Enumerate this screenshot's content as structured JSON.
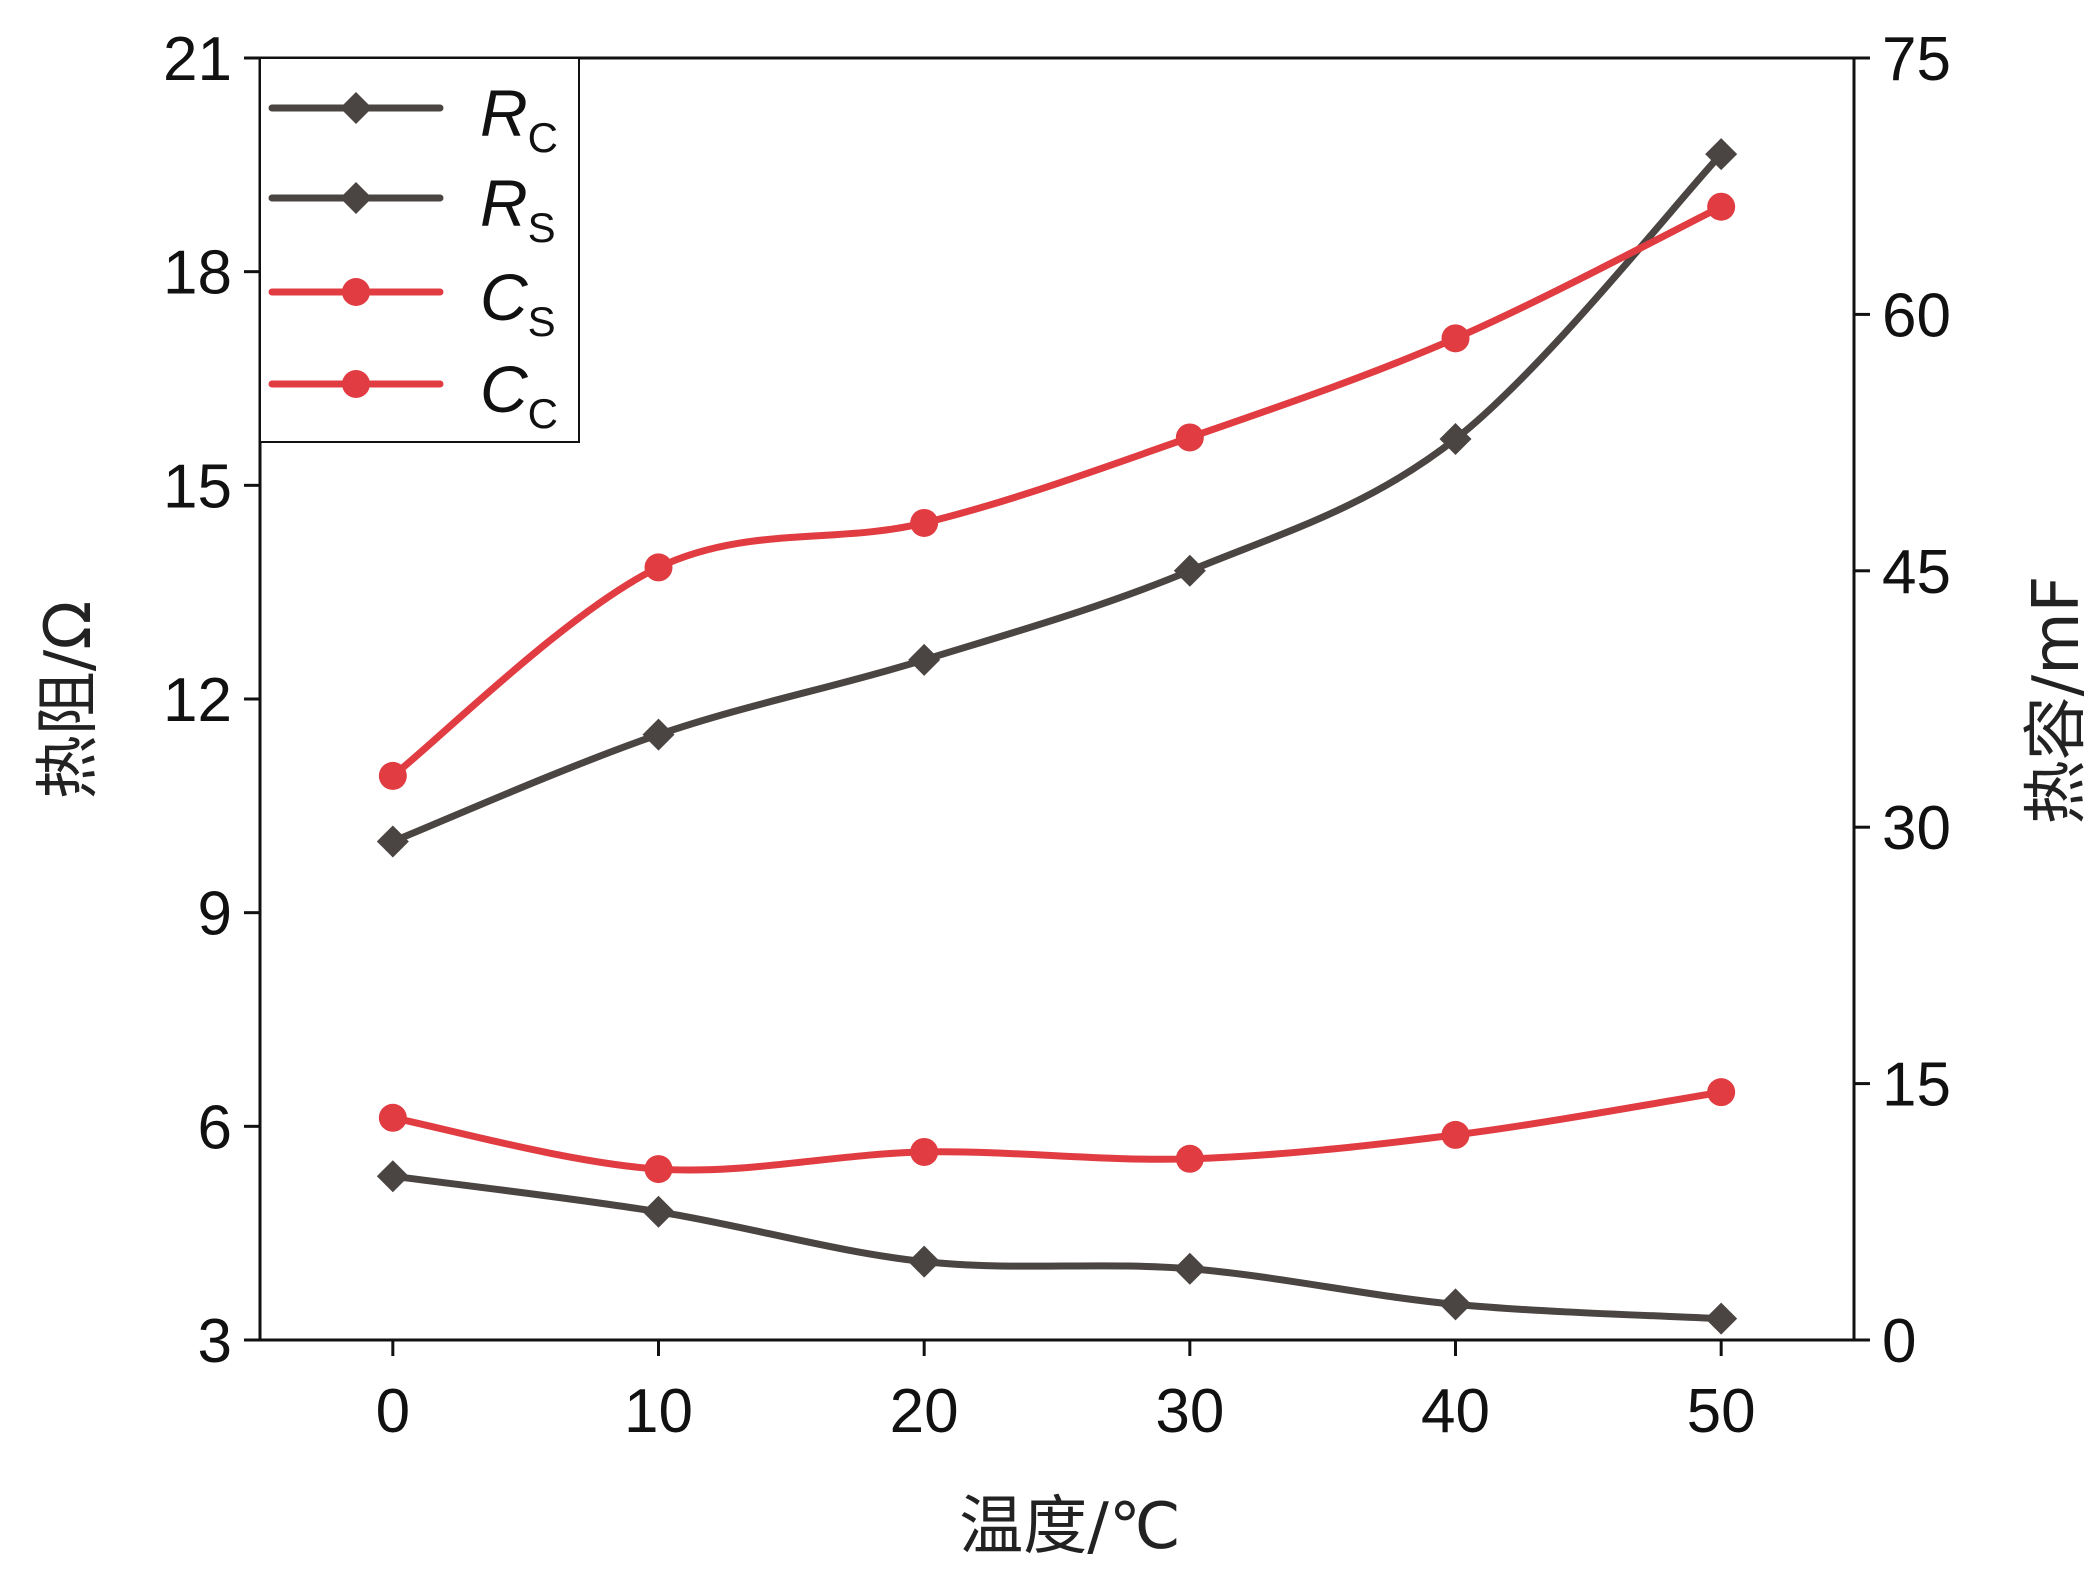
{
  "chart_data": {
    "type": "line",
    "title": "",
    "xlabel": "温度/℃",
    "ylabel_left": "热阻/Ω",
    "ylabel_right": "热容/mF",
    "x": [
      0,
      10,
      20,
      30,
      40,
      50
    ],
    "x_ticks": [
      "0",
      "10",
      "20",
      "30",
      "40",
      "50"
    ],
    "xlim": [
      -5,
      55
    ],
    "ylim_left": [
      3,
      21
    ],
    "yticks_left": [
      "3",
      "6",
      "9",
      "12",
      "15",
      "18",
      "21"
    ],
    "ylim_right": [
      0,
      75
    ],
    "yticks_right": [
      "0",
      "15",
      "30",
      "45",
      "60",
      "75"
    ],
    "grid": false,
    "legend_position": "top-left",
    "colors": {
      "resistance": "#4a4442",
      "capacitance": "#e03c41"
    },
    "series": [
      {
        "name": "R",
        "sub": "C",
        "axis": "left",
        "marker": "diamond",
        "color": "#4a4442",
        "values": [
          10.0,
          11.5,
          12.55,
          13.8,
          15.65,
          19.65
        ]
      },
      {
        "name": "R",
        "sub": "S",
        "axis": "left",
        "marker": "diamond",
        "color": "#4a4442",
        "values": [
          5.3,
          4.8,
          4.1,
          4.0,
          3.5,
          3.3
        ]
      },
      {
        "name": "C",
        "sub": "S",
        "axis": "right",
        "marker": "circle",
        "color": "#e03c41",
        "values": [
          33.0,
          45.2,
          47.8,
          52.8,
          58.6,
          66.3
        ]
      },
      {
        "name": "C",
        "sub": "C",
        "axis": "right",
        "marker": "circle",
        "color": "#e03c41",
        "values": [
          13.0,
          10.0,
          11.0,
          10.6,
          12.0,
          14.5
        ]
      }
    ]
  }
}
